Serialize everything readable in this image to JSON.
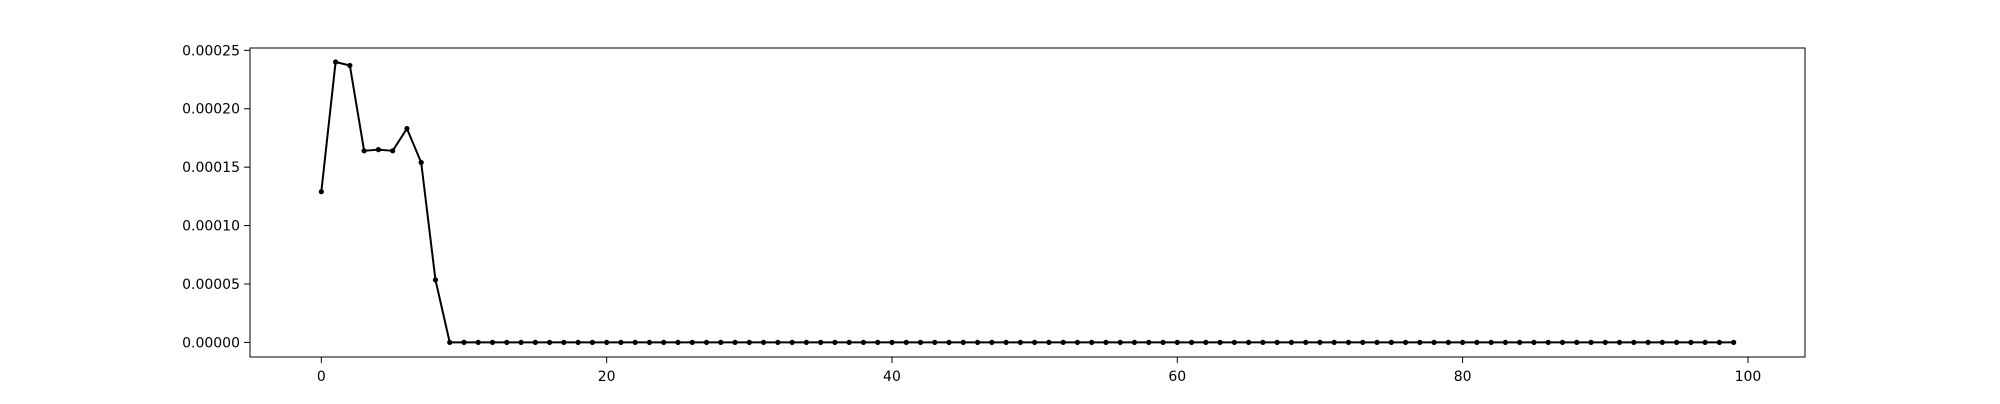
{
  "chart_data": {
    "type": "line",
    "title": "",
    "xlabel": "",
    "ylabel": "",
    "xlim": [
      -5,
      104
    ],
    "ylim": [
      -1.25e-05,
      0.000252
    ],
    "grid": false,
    "legend": "none",
    "xticks": [
      0,
      20,
      40,
      60,
      80,
      100
    ],
    "xtick_labels": [
      "0",
      "20",
      "40",
      "60",
      "80",
      "100"
    ],
    "yticks": [
      0,
      5e-05,
      0.0001,
      0.00015,
      0.0002,
      0.00025
    ],
    "ytick_labels": [
      "0.00000",
      "0.00005",
      "0.00010",
      "0.00015",
      "0.00020",
      "0.00025"
    ],
    "series": [
      {
        "color": "#000000",
        "marker": "circle",
        "x": [
          0,
          1,
          2,
          3,
          4,
          5,
          6,
          7,
          8,
          9,
          10,
          11,
          12,
          13,
          14,
          15,
          16,
          17,
          18,
          19,
          20,
          21,
          22,
          23,
          24,
          25,
          26,
          27,
          28,
          29,
          30,
          31,
          32,
          33,
          34,
          35,
          36,
          37,
          38,
          39,
          40,
          41,
          42,
          43,
          44,
          45,
          46,
          47,
          48,
          49,
          50,
          51,
          52,
          53,
          54,
          55,
          56,
          57,
          58,
          59,
          60,
          61,
          62,
          63,
          64,
          65,
          66,
          67,
          68,
          69,
          70,
          71,
          72,
          73,
          74,
          75,
          76,
          77,
          78,
          79,
          80,
          81,
          82,
          83,
          84,
          85,
          86,
          87,
          88,
          89,
          90,
          91,
          92,
          93,
          94,
          95,
          96,
          97,
          98,
          99
        ],
        "values": [
          0.000129,
          0.00024,
          0.000237,
          0.000164,
          0.000165,
          0.000164,
          0.000183,
          0.000154,
          5.35e-05,
          0,
          0,
          0,
          0,
          0,
          0,
          0,
          0,
          0,
          0,
          0,
          0,
          0,
          0,
          0,
          0,
          0,
          0,
          0,
          0,
          0,
          0,
          0,
          0,
          0,
          0,
          0,
          0,
          0,
          0,
          0,
          0,
          0,
          0,
          0,
          0,
          0,
          0,
          0,
          0,
          0,
          0,
          0,
          0,
          0,
          0,
          0,
          0,
          0,
          0,
          0,
          0,
          0,
          0,
          0,
          0,
          0,
          0,
          0,
          0,
          0,
          0,
          0,
          0,
          0,
          0,
          0,
          0,
          0,
          0,
          0,
          0,
          0,
          0,
          0,
          0,
          0,
          0,
          0,
          0,
          0,
          0,
          0,
          0,
          0,
          0,
          0,
          0,
          0,
          0,
          0
        ]
      }
    ]
  }
}
